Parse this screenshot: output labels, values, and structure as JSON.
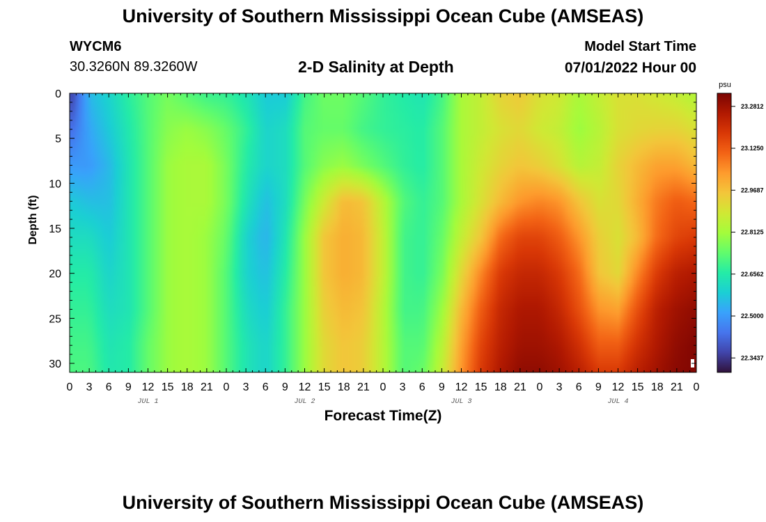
{
  "header": {
    "title": "University of Southern Mississippi Ocean Cube (AMSEAS)",
    "station": "WYCM6",
    "coords": "30.3260N  89.3260W",
    "subtitle": "2-D Salinity at Depth",
    "model_start_label": "Model Start Time",
    "model_start_value": "07/01/2022 Hour 00"
  },
  "footer": {
    "title": "University of Southern Mississippi Ocean Cube (AMSEAS)"
  },
  "chart_data": {
    "type": "heatmap",
    "variable": "Salinity",
    "xlabel": "Forecast Time(Z)",
    "ylabel": "Depth (ft)",
    "x_range_hours": [
      0,
      96
    ],
    "y_range_ft": [
      0,
      31
    ],
    "y_inverted": true,
    "x_tick_labels": [
      "0",
      "3",
      "6",
      "9",
      "12",
      "15",
      "18",
      "21",
      "0",
      "3",
      "6",
      "9",
      "12",
      "15",
      "18",
      "21",
      "0",
      "3",
      "6",
      "9",
      "12",
      "15",
      "18",
      "21",
      "0",
      "3",
      "6",
      "9",
      "12",
      "15",
      "18",
      "21",
      "0"
    ],
    "day_labels": [
      {
        "label": "JUL 1",
        "hour": 12
      },
      {
        "label": "JUL 2",
        "hour": 36
      },
      {
        "label": "JUL 3",
        "hour": 60
      },
      {
        "label": "JUL 4",
        "hour": 84
      }
    ],
    "y_ticks": [
      0,
      5,
      10,
      15,
      20,
      25,
      30
    ],
    "colorbar": {
      "unit": "psu",
      "range": [
        22.29,
        23.33
      ],
      "tick_values": [
        22.3437,
        22.5,
        22.6562,
        22.8125,
        22.9687,
        23.125,
        23.2812
      ],
      "tick_labels": [
        "22.3437",
        "22.5000",
        "22.6562",
        "22.8125",
        "22.9687",
        "23.1250",
        "23.2812"
      ],
      "colors": [
        "#30123b",
        "#4145ab",
        "#4675ed",
        "#39a2fc",
        "#1bcfd4",
        "#24eca6",
        "#61fc6c",
        "#a4fc3b",
        "#d1e834",
        "#f3c63a",
        "#fe9b2d",
        "#f36315",
        "#d93806",
        "#b11901",
        "#7a0402"
      ]
    },
    "depths_ft": [
      0,
      4,
      8,
      12,
      16,
      20,
      24,
      28,
      31
    ],
    "times_h": [
      0,
      3,
      6,
      9,
      12,
      15,
      18,
      21,
      24,
      27,
      30,
      33,
      36,
      39,
      42,
      45,
      48,
      51,
      54,
      57,
      60,
      63,
      66,
      69,
      72,
      75,
      78,
      81,
      84,
      87,
      90,
      93,
      96
    ],
    "salinity_psu": [
      [
        22.34,
        22.55,
        22.6,
        22.67,
        22.72,
        22.76,
        22.72,
        22.69,
        22.68,
        22.64,
        22.58,
        22.58,
        22.7,
        22.75,
        22.75,
        22.72,
        22.68,
        22.66,
        22.64,
        22.7,
        22.82,
        22.86,
        22.93,
        22.95,
        22.9,
        22.88,
        22.82,
        22.86,
        22.9,
        22.9,
        22.88,
        22.86,
        22.83
      ],
      [
        22.42,
        22.52,
        22.58,
        22.65,
        22.72,
        22.78,
        22.8,
        22.78,
        22.74,
        22.68,
        22.6,
        22.62,
        22.72,
        22.74,
        22.74,
        22.7,
        22.68,
        22.67,
        22.66,
        22.72,
        22.82,
        22.86,
        22.9,
        22.92,
        22.88,
        22.86,
        22.8,
        22.84,
        22.9,
        22.92,
        22.93,
        22.93,
        22.9
      ],
      [
        22.5,
        22.5,
        22.55,
        22.64,
        22.72,
        22.8,
        22.82,
        22.82,
        22.76,
        22.66,
        22.6,
        22.62,
        22.72,
        22.78,
        22.8,
        22.76,
        22.72,
        22.68,
        22.66,
        22.72,
        22.82,
        22.88,
        22.93,
        22.96,
        22.94,
        22.9,
        22.84,
        22.86,
        22.93,
        22.98,
        23.02,
        23.02,
        22.98
      ],
      [
        22.58,
        22.56,
        22.56,
        22.64,
        22.72,
        22.8,
        22.82,
        22.82,
        22.76,
        22.64,
        22.56,
        22.62,
        22.76,
        22.88,
        22.98,
        22.96,
        22.84,
        22.72,
        22.68,
        22.72,
        22.82,
        22.9,
        22.98,
        23.04,
        23.06,
        23.04,
        22.96,
        22.9,
        22.92,
        23.0,
        23.08,
        23.12,
        23.1
      ],
      [
        22.62,
        22.62,
        22.58,
        22.64,
        22.72,
        22.8,
        22.82,
        22.8,
        22.74,
        22.6,
        22.54,
        22.64,
        22.8,
        22.96,
        23.0,
        22.98,
        22.86,
        22.7,
        22.68,
        22.74,
        22.86,
        22.96,
        23.1,
        23.16,
        23.16,
        23.12,
        23.04,
        22.94,
        22.9,
        22.98,
        23.1,
        23.16,
        23.18
      ],
      [
        22.66,
        22.66,
        22.6,
        22.64,
        22.72,
        22.8,
        22.82,
        22.8,
        22.72,
        22.6,
        22.56,
        22.66,
        22.8,
        22.96,
        23.0,
        22.98,
        22.86,
        22.7,
        22.68,
        22.76,
        22.92,
        23.06,
        23.18,
        23.22,
        23.22,
        23.18,
        23.1,
        22.96,
        22.92,
        23.06,
        23.18,
        23.24,
        23.26
      ],
      [
        22.68,
        22.68,
        22.62,
        22.64,
        22.72,
        22.8,
        22.82,
        22.8,
        22.72,
        22.62,
        22.58,
        22.68,
        22.8,
        22.94,
        22.98,
        22.96,
        22.84,
        22.7,
        22.7,
        22.8,
        22.98,
        23.12,
        23.22,
        23.26,
        23.26,
        23.22,
        23.14,
        23.04,
        23.02,
        23.14,
        23.24,
        23.28,
        23.3
      ],
      [
        22.7,
        22.7,
        22.64,
        22.66,
        22.74,
        22.8,
        22.82,
        22.8,
        22.72,
        22.64,
        22.6,
        22.68,
        22.8,
        22.92,
        22.96,
        22.94,
        22.84,
        22.72,
        22.72,
        22.84,
        23.02,
        23.16,
        23.24,
        23.28,
        23.28,
        23.26,
        23.2,
        23.12,
        23.12,
        23.2,
        23.26,
        23.3,
        23.32
      ],
      [
        22.71,
        22.71,
        22.65,
        22.66,
        22.74,
        22.8,
        22.82,
        22.8,
        22.72,
        22.64,
        22.6,
        22.68,
        22.8,
        22.92,
        22.96,
        22.94,
        22.84,
        22.72,
        22.74,
        22.86,
        23.04,
        23.18,
        23.26,
        23.3,
        23.3,
        23.28,
        23.24,
        23.18,
        23.18,
        23.24,
        23.28,
        23.31,
        23.32
      ]
    ]
  }
}
